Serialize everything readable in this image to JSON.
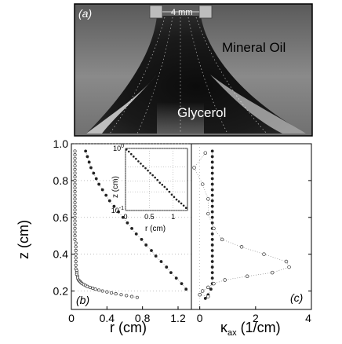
{
  "photo": {
    "panel_label": "(a)",
    "scale_label": "4 mm",
    "upper_fluid_label": "Mineral Oil",
    "lower_fluid_label": "Glycerol"
  },
  "colors": {
    "frame": "#000000",
    "marker_filled": "#222222",
    "marker_open_stroke": "#333333",
    "connector_dots": "#777777",
    "grid_dots": "#999999"
  },
  "chart_data": [
    {
      "panel_label": "(b)",
      "type": "scatter",
      "xlabel": "r (cm)",
      "ylabel": "z (cm)",
      "xlim": [
        0,
        1.35
      ],
      "ylim": [
        0.1,
        1.0
      ],
      "xticks": [
        "0",
        "0.4",
        "0.8",
        "1.2"
      ],
      "xtick_values": [
        0,
        0.4,
        0.8,
        1.2
      ],
      "yticks": [
        "0.2",
        "0.4",
        "0.6",
        "0.8",
        "1.0"
      ],
      "ytick_values": [
        0.2,
        0.4,
        0.6,
        0.8,
        1.0
      ],
      "series": [
        {
          "marker": "open-circle",
          "x": [
            0.04,
            0.04,
            0.04,
            0.04,
            0.04,
            0.04,
            0.04,
            0.04,
            0.04,
            0.04,
            0.04,
            0.04,
            0.04,
            0.04,
            0.04,
            0.04,
            0.04,
            0.04,
            0.04,
            0.04,
            0.04,
            0.04,
            0.04,
            0.04,
            0.04,
            0.05,
            0.05,
            0.05,
            0.05,
            0.05,
            0.05,
            0.05,
            0.05,
            0.06,
            0.06,
            0.06,
            0.07,
            0.07,
            0.08,
            0.09,
            0.1,
            0.11,
            0.12,
            0.14,
            0.16,
            0.18,
            0.21,
            0.24,
            0.27,
            0.31,
            0.35,
            0.4,
            0.45,
            0.5,
            0.56,
            0.62,
            0.68,
            0.74
          ],
          "y": [
            0.96,
            0.94,
            0.92,
            0.9,
            0.88,
            0.86,
            0.84,
            0.82,
            0.8,
            0.78,
            0.76,
            0.74,
            0.72,
            0.7,
            0.68,
            0.66,
            0.64,
            0.62,
            0.6,
            0.58,
            0.56,
            0.54,
            0.52,
            0.5,
            0.48,
            0.46,
            0.44,
            0.42,
            0.4,
            0.38,
            0.36,
            0.34,
            0.32,
            0.31,
            0.3,
            0.29,
            0.28,
            0.27,
            0.26,
            0.255,
            0.25,
            0.245,
            0.24,
            0.235,
            0.23,
            0.225,
            0.22,
            0.215,
            0.21,
            0.205,
            0.2,
            0.195,
            0.19,
            0.185,
            0.18,
            0.175,
            0.17,
            0.165
          ]
        },
        {
          "marker": "filled-circle",
          "x": [
            0.16,
            0.18,
            0.2,
            0.22,
            0.25,
            0.28,
            0.31,
            0.35,
            0.39,
            0.43,
            0.48,
            0.53,
            0.58,
            0.63,
            0.68,
            0.73,
            0.79,
            0.84,
            0.9,
            0.95,
            1.01,
            1.07,
            1.12,
            1.18,
            1.24,
            1.29
          ],
          "y": [
            0.96,
            0.93,
            0.9,
            0.87,
            0.84,
            0.81,
            0.78,
            0.75,
            0.72,
            0.69,
            0.66,
            0.63,
            0.6,
            0.57,
            0.54,
            0.51,
            0.48,
            0.45,
            0.42,
            0.39,
            0.36,
            0.33,
            0.3,
            0.27,
            0.24,
            0.21
          ]
        }
      ],
      "inset": {
        "type": "scatter",
        "xlabel": "r (cm)",
        "ylabel": "z (cm)",
        "xscale": "linear",
        "yscale": "log",
        "xlim": [
          0,
          1.3
        ],
        "ylim": [
          0.1,
          1.0
        ],
        "xticks": [
          "0",
          "0.5",
          "1"
        ],
        "xtick_values": [
          0,
          0.5,
          1
        ],
        "ytick_base": "10",
        "ytick_exponents": [
          "0",
          "-1"
        ],
        "ytick_values": [
          1.0,
          0.1
        ],
        "x": [
          0.02,
          0.07,
          0.12,
          0.17,
          0.22,
          0.27,
          0.32,
          0.37,
          0.42,
          0.47,
          0.52,
          0.57,
          0.62,
          0.67,
          0.72,
          0.77,
          0.82,
          0.87,
          0.92,
          0.97,
          1.02,
          1.07,
          1.12,
          1.17,
          1.22,
          1.27
        ],
        "y": [
          0.96,
          0.89,
          0.81,
          0.74,
          0.68,
          0.62,
          0.57,
          0.52,
          0.48,
          0.44,
          0.4,
          0.37,
          0.34,
          0.31,
          0.28,
          0.26,
          0.24,
          0.22,
          0.2,
          0.18,
          0.165,
          0.15,
          0.14,
          0.13,
          0.12,
          0.11
        ]
      }
    },
    {
      "panel_label": "(c)",
      "type": "scatter",
      "xlabel": "κ",
      "xlabel_subscript": "ax",
      "xlabel_units": " (1/cm)",
      "xlim": [
        -0.3,
        4.0
      ],
      "ylim": [
        0.1,
        1.0
      ],
      "xticks": [
        "0",
        "2",
        "4"
      ],
      "xtick_values": [
        0,
        2,
        4
      ],
      "series": [
        {
          "marker": "filled-circle",
          "x": [
            0.45,
            0.45,
            0.45,
            0.45,
            0.45,
            0.45,
            0.45,
            0.45,
            0.45,
            0.45,
            0.45,
            0.45,
            0.45,
            0.45,
            0.45,
            0.45,
            0.45,
            0.45,
            0.45,
            0.45,
            0.45,
            0.45,
            0.45,
            0.45,
            0.45,
            0.4,
            0.3,
            0.2
          ],
          "y": [
            0.96,
            0.93,
            0.9,
            0.87,
            0.84,
            0.81,
            0.78,
            0.75,
            0.72,
            0.69,
            0.66,
            0.63,
            0.6,
            0.57,
            0.54,
            0.51,
            0.48,
            0.45,
            0.42,
            0.39,
            0.36,
            0.33,
            0.3,
            0.27,
            0.24,
            0.21,
            0.18,
            0.16
          ]
        },
        {
          "marker": "open-circle",
          "x": [
            0.2,
            -0.2,
            0.1,
            0.3,
            0.3,
            0.5,
            0.8,
            1.5,
            2.3,
            3.1,
            3.2,
            2.6,
            1.7,
            0.9,
            0.5,
            0.3,
            0.1,
            0.0,
            0.3
          ],
          "y": [
            0.95,
            0.87,
            0.78,
            0.7,
            0.62,
            0.54,
            0.48,
            0.44,
            0.4,
            0.36,
            0.33,
            0.3,
            0.28,
            0.26,
            0.24,
            0.22,
            0.2,
            0.18,
            0.17
          ]
        }
      ]
    }
  ]
}
